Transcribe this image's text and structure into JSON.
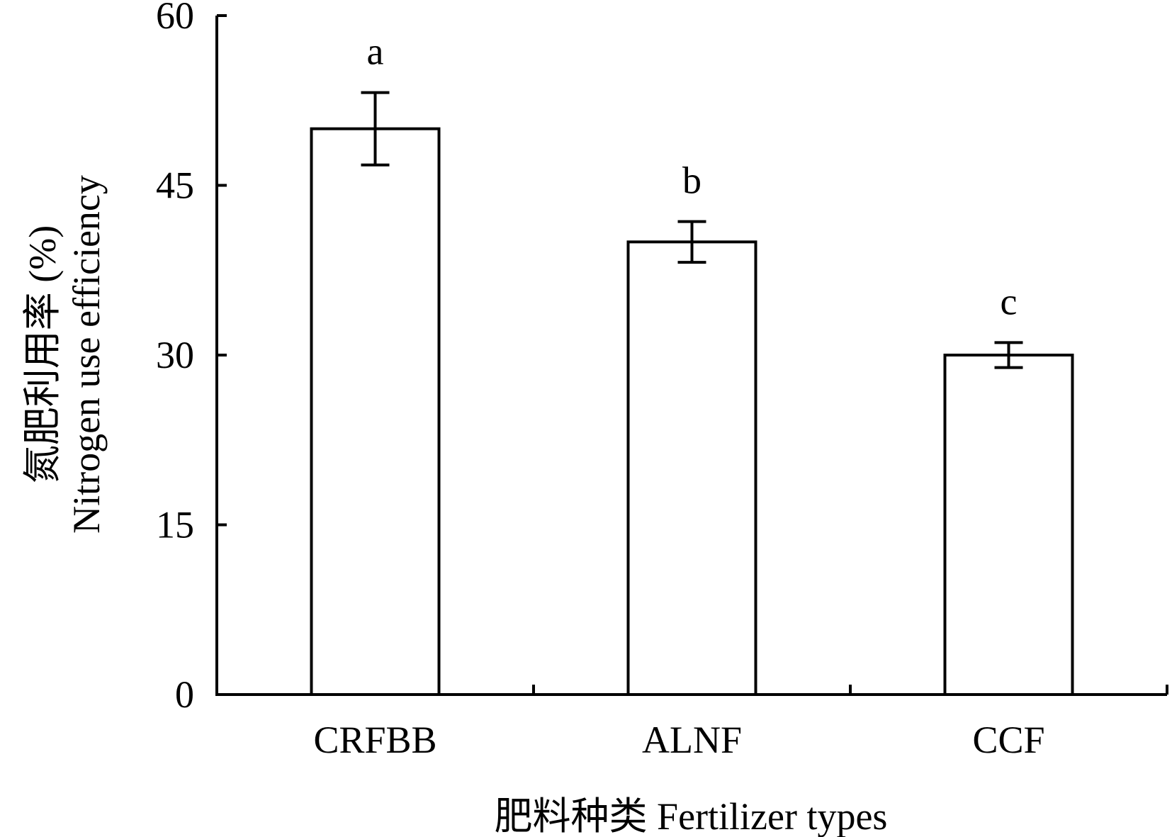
{
  "chart_data": {
    "type": "bar",
    "categories": [
      "CRFBB",
      "ALNF",
      "CCF"
    ],
    "values": [
      50.0,
      40.0,
      30.0
    ],
    "error": [
      3.2,
      1.8,
      1.1
    ],
    "significance": [
      "a",
      "b",
      "c"
    ],
    "xlabel": "肥料种类 Fertilizer types",
    "ylabel_line1": "氮肥利用率 (%)",
    "ylabel_line2": "Nitrogen use efficiency",
    "yticks": [
      0,
      15,
      30,
      45,
      60
    ],
    "ylim": [
      0,
      60
    ],
    "grid": false,
    "legend": "none",
    "colors": {
      "bar_fill": "#ffffff",
      "stroke": "#000000"
    }
  }
}
